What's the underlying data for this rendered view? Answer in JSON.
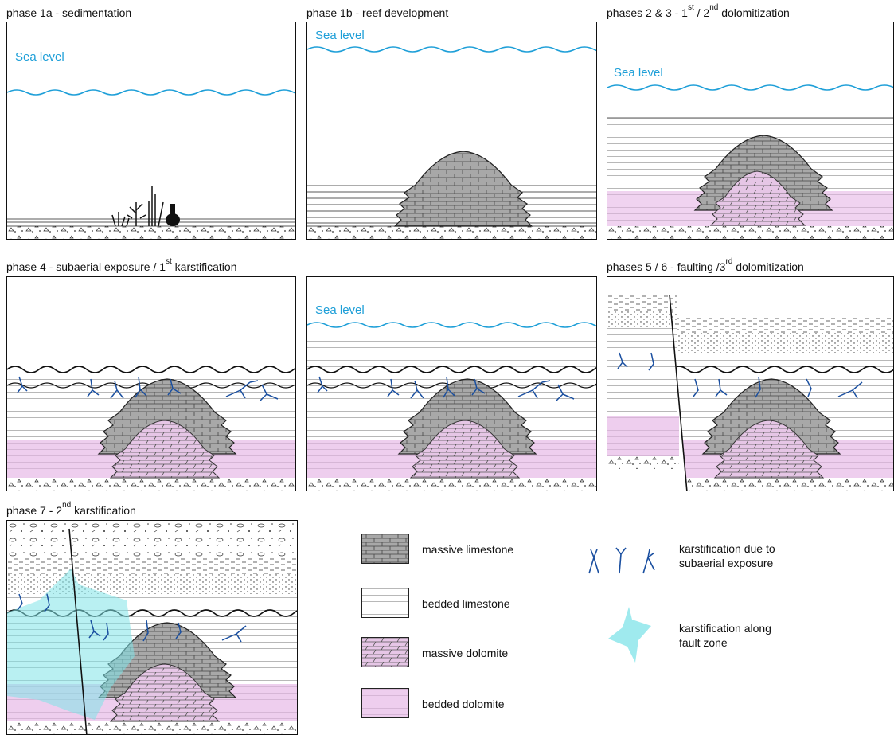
{
  "phases": [
    {
      "id": "p1a",
      "title": "phase 1a - sedimentation",
      "sup": "",
      "title_tail": "",
      "sea_level": "Sea level"
    },
    {
      "id": "p1b",
      "title": "phase 1b - reef development",
      "sup": "",
      "title_tail": "",
      "sea_level": "Sea level"
    },
    {
      "id": "p23",
      "title": "phases 2 & 3 - 1",
      "sup": "st",
      "title_tail": " / 2",
      "sup2": "nd",
      "title_tail2": " dolomitization",
      "sea_level": "Sea level"
    },
    {
      "id": "p4",
      "title": "phase 4 - subaerial exposure / 1",
      "sup": "st",
      "title_tail": " karstification",
      "sea_level": ""
    },
    {
      "id": "p4b",
      "title": "",
      "sup": "",
      "title_tail": "",
      "sea_level": "Sea level"
    },
    {
      "id": "p56",
      "title": "phases 5 / 6 - faulting /3",
      "sup": "rd",
      "title_tail": " dolomitization",
      "sea_level": ""
    },
    {
      "id": "p7",
      "title": "phase 7 - 2",
      "sup": "nd",
      "title_tail": " karstification",
      "sea_level": ""
    }
  ],
  "legend": {
    "massive_limestone": "massive limestone",
    "bedded_limestone": "bedded limestone",
    "massive_dolomite": "massive dolomite",
    "bedded_dolomite": "bedded dolomite",
    "karst_subaerial_1": "karstification due to",
    "karst_subaerial_2": "subaerial exposure",
    "karst_fault_1": "karstification along",
    "karst_fault_2": "fault zone"
  },
  "colors": {
    "sea_level": "#1e9fd8",
    "massive_limestone": "#a8a8a8",
    "dolomite": "#e6c6e6",
    "karst": "#1a4fa0",
    "fault_karst": "#7fe3e8"
  }
}
